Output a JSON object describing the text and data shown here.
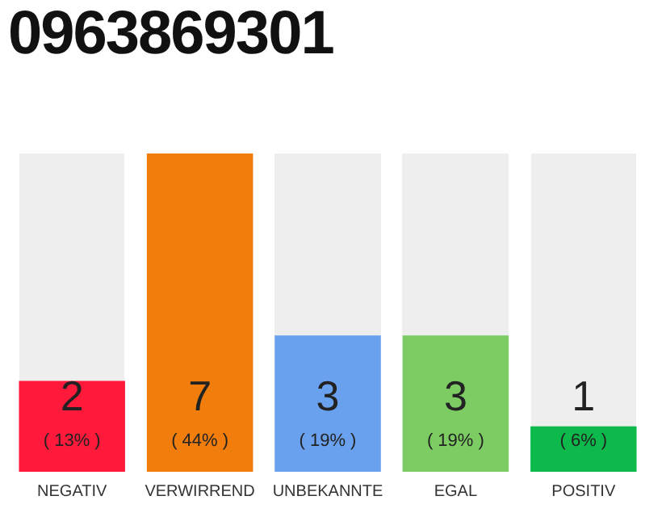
{
  "chart_data": {
    "type": "bar",
    "title": "0963869301",
    "categories": [
      "NEGATIV",
      "VERWIRREND",
      "UNBEKANNTE",
      "EGAL",
      "POSITIV"
    ],
    "values": [
      2,
      7,
      3,
      3,
      1
    ],
    "colors": [
      "#ff1a3c",
      "#f07d0c",
      "#6aa1ee",
      "#7ccc63",
      "#0cb94a"
    ],
    "data_labels": true,
    "annotations": [
      "( 13% )",
      "( 44% )",
      "( 19% )",
      "( 19% )",
      "( 6% )"
    ],
    "grid": false,
    "legend": false
  }
}
